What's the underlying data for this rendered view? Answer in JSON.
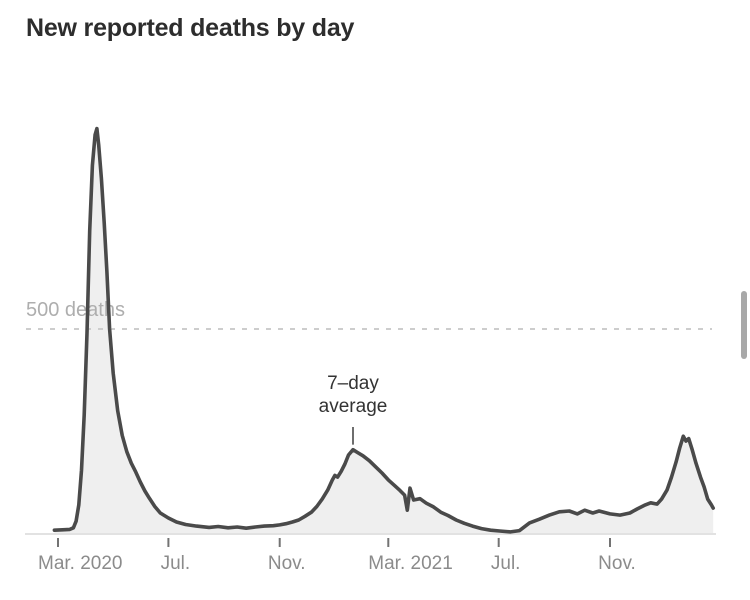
{
  "title": "New reported deaths by day",
  "y_reference": {
    "label": "500 deaths",
    "value": 500
  },
  "annotation": {
    "line1": "7–day",
    "line2": "average",
    "date": "2021-01-21",
    "target_value": 205
  },
  "x_axis": {
    "ticks": [
      {
        "label": "Mar. 2020",
        "date": "2020-03-01"
      },
      {
        "label": "Jul.",
        "date": "2020-07-01"
      },
      {
        "label": "Nov.",
        "date": "2020-11-01"
      },
      {
        "label": "Mar. 2021",
        "date": "2021-03-01"
      },
      {
        "label": "Jul.",
        "date": "2021-07-01"
      },
      {
        "label": "Nov.",
        "date": "2021-11-01"
      }
    ]
  },
  "colors": {
    "title": "#2d2d2d",
    "line": "#4a4a4a",
    "fill": "#efefef",
    "gridline": "#cdcdcd",
    "axis": "#e2e2e2",
    "tick": "#737373",
    "tick_label": "#8b8b8b",
    "ref_label": "#aeaeae",
    "annotation": "#333333",
    "scrollbar": "#a8a8a8"
  },
  "chart_data": {
    "type": "area",
    "title": "New reported deaths by day",
    "xlabel": "",
    "ylabel": "deaths",
    "ylim": [
      0,
      1000
    ],
    "x_domain": [
      "2020-02-26",
      "2022-02-23"
    ],
    "grid": "single dashed reference line at y=500",
    "legend_position": "none",
    "series": [
      {
        "name": "7-day average",
        "points": [
          [
            "2020-02-26",
            8
          ],
          [
            "2020-03-06",
            9
          ],
          [
            "2020-03-14",
            10
          ],
          [
            "2020-03-18",
            14
          ],
          [
            "2020-03-21",
            30
          ],
          [
            "2020-03-24",
            70
          ],
          [
            "2020-03-27",
            155
          ],
          [
            "2020-03-30",
            290
          ],
          [
            "2020-04-02",
            490
          ],
          [
            "2020-04-05",
            740
          ],
          [
            "2020-04-08",
            900
          ],
          [
            "2020-04-11",
            975
          ],
          [
            "2020-04-13",
            990
          ],
          [
            "2020-04-15",
            950
          ],
          [
            "2020-04-18",
            868
          ],
          [
            "2020-04-21",
            760
          ],
          [
            "2020-04-24",
            640
          ],
          [
            "2020-04-27",
            500
          ],
          [
            "2020-05-01",
            392
          ],
          [
            "2020-05-06",
            300
          ],
          [
            "2020-05-11",
            240
          ],
          [
            "2020-05-16",
            200
          ],
          [
            "2020-05-21",
            172
          ],
          [
            "2020-05-26",
            150
          ],
          [
            "2020-05-31",
            126
          ],
          [
            "2020-06-05",
            104
          ],
          [
            "2020-06-10",
            86
          ],
          [
            "2020-06-16",
            66
          ],
          [
            "2020-06-22",
            50
          ],
          [
            "2020-07-01",
            38
          ],
          [
            "2020-07-10",
            28
          ],
          [
            "2020-07-20",
            22
          ],
          [
            "2020-08-01",
            18
          ],
          [
            "2020-08-15",
            15
          ],
          [
            "2020-08-25",
            17
          ],
          [
            "2020-09-05",
            14
          ],
          [
            "2020-09-15",
            16
          ],
          [
            "2020-09-25",
            13
          ],
          [
            "2020-10-05",
            16
          ],
          [
            "2020-10-15",
            18
          ],
          [
            "2020-10-25",
            19
          ],
          [
            "2020-11-01",
            21
          ],
          [
            "2020-11-08",
            24
          ],
          [
            "2020-11-15",
            28
          ],
          [
            "2020-11-22",
            33
          ],
          [
            "2020-11-29",
            42
          ],
          [
            "2020-12-06",
            52
          ],
          [
            "2020-12-12",
            66
          ],
          [
            "2020-12-18",
            84
          ],
          [
            "2020-12-24",
            106
          ],
          [
            "2020-12-29",
            130
          ],
          [
            "2021-01-01",
            142
          ],
          [
            "2021-01-04",
            138
          ],
          [
            "2021-01-08",
            152
          ],
          [
            "2021-01-12",
            170
          ],
          [
            "2021-01-16",
            192
          ],
          [
            "2021-01-21",
            205
          ],
          [
            "2021-01-26",
            198
          ],
          [
            "2021-02-01",
            190
          ],
          [
            "2021-02-08",
            178
          ],
          [
            "2021-02-15",
            163
          ],
          [
            "2021-02-22",
            148
          ],
          [
            "2021-03-01",
            131
          ],
          [
            "2021-03-08",
            117
          ],
          [
            "2021-03-14",
            105
          ],
          [
            "2021-03-19",
            94
          ],
          [
            "2021-03-22",
            57
          ],
          [
            "2021-03-25",
            111
          ],
          [
            "2021-03-29",
            82
          ],
          [
            "2021-04-05",
            85
          ],
          [
            "2021-04-12",
            74
          ],
          [
            "2021-04-20",
            65
          ],
          [
            "2021-04-28",
            52
          ],
          [
            "2021-05-06",
            44
          ],
          [
            "2021-05-15",
            33
          ],
          [
            "2021-05-24",
            25
          ],
          [
            "2021-06-02",
            18
          ],
          [
            "2021-06-12",
            12
          ],
          [
            "2021-06-22",
            8
          ],
          [
            "2021-07-02",
            6
          ],
          [
            "2021-07-14",
            4
          ],
          [
            "2021-07-24",
            7
          ],
          [
            "2021-08-04",
            26
          ],
          [
            "2021-08-15",
            35
          ],
          [
            "2021-08-26",
            45
          ],
          [
            "2021-09-06",
            53
          ],
          [
            "2021-09-17",
            55
          ],
          [
            "2021-09-26",
            48
          ],
          [
            "2021-10-04",
            57
          ],
          [
            "2021-10-13",
            50
          ],
          [
            "2021-10-20",
            55
          ],
          [
            "2021-11-01",
            48
          ],
          [
            "2021-11-12",
            45
          ],
          [
            "2021-11-23",
            50
          ],
          [
            "2021-12-01",
            60
          ],
          [
            "2021-12-10",
            70
          ],
          [
            "2021-12-16",
            75
          ],
          [
            "2021-12-23",
            72
          ],
          [
            "2021-12-28",
            84
          ],
          [
            "2022-01-03",
            106
          ],
          [
            "2022-01-08",
            138
          ],
          [
            "2022-01-13",
            175
          ],
          [
            "2022-01-17",
            209
          ],
          [
            "2022-01-21",
            238
          ],
          [
            "2022-01-24",
            226
          ],
          [
            "2022-01-27",
            232
          ],
          [
            "2022-01-31",
            204
          ],
          [
            "2022-02-04",
            172
          ],
          [
            "2022-02-09",
            138
          ],
          [
            "2022-02-13",
            114
          ],
          [
            "2022-02-17",
            84
          ],
          [
            "2022-02-21",
            70
          ],
          [
            "2022-02-23",
            62
          ]
        ]
      }
    ]
  }
}
